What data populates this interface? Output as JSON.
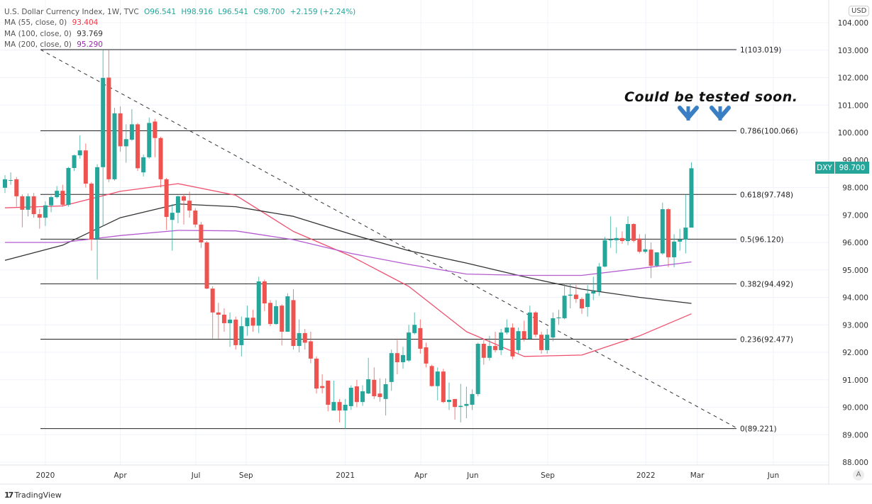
{
  "legend": {
    "title": "U.S. Dollar Currency Index, 1W, TVC",
    "open": "O96.541",
    "high": "H98.916",
    "low": "L96.541",
    "close": "C98.700",
    "change": "+2.159 (+2.24%)",
    "ma55_label": "MA (55, close, 0)",
    "ma55_value": "93.404",
    "ma100_label": "MA (100, close, 0)",
    "ma100_value": "93.769",
    "ma200_label": "MA (200, close, 0)",
    "ma200_value": "95.290"
  },
  "currency_button": "USD",
  "auto_scale_button": "A",
  "brand": "TradingView",
  "annotation": "Could be tested soon.",
  "price_badge": {
    "symbol": "DXY",
    "price": "98.700"
  },
  "colors": {
    "up": "#26a69a",
    "down": "#ef5350",
    "ma55": "#f0506e",
    "ma100": "#333333",
    "ma200": "#b45bd0",
    "arrow": "#3a7fc4"
  },
  "chart_data": {
    "type": "candlestick",
    "title": "U.S. Dollar Currency Index, 1W, TVC",
    "interval": "1W",
    "ylim": [
      88,
      104
    ],
    "y_ticks": [
      "104.000",
      "103.000",
      "102.000",
      "101.000",
      "100.000",
      "99.000",
      "98.000",
      "97.000",
      "96.000",
      "95.000",
      "94.000",
      "93.000",
      "92.000",
      "91.000",
      "90.000",
      "89.000",
      "88.000"
    ],
    "x_ticks": [
      "2020",
      "Apr",
      "Jul",
      "Sep",
      "2021",
      "Apr",
      "Jun",
      "Sep",
      "2022",
      "Mar",
      "Jun"
    ],
    "grid": true,
    "ohlc": [
      [
        97.99,
        98.45,
        97.8,
        98.3
      ],
      [
        98.25,
        98.55,
        98.1,
        98.27
      ],
      [
        98.3,
        98.38,
        97.3,
        97.68
      ],
      [
        97.68,
        97.75,
        96.55,
        97.19
      ],
      [
        97.19,
        97.78,
        96.95,
        97.68
      ],
      [
        97.68,
        97.8,
        96.9,
        97.03
      ],
      [
        97.03,
        97.22,
        96.5,
        96.9
      ],
      [
        96.9,
        97.5,
        96.6,
        97.35
      ],
      [
        97.35,
        97.7,
        97.1,
        97.65
      ],
      [
        97.65,
        98.05,
        97.6,
        97.88
      ],
      [
        97.88,
        98.1,
        97.3,
        97.37
      ],
      [
        97.37,
        98.75,
        97.3,
        98.71
      ],
      [
        98.71,
        99.2,
        98.6,
        99.17
      ],
      [
        99.17,
        99.9,
        99.05,
        99.35
      ],
      [
        99.35,
        99.6,
        98.0,
        98.14
      ],
      [
        98.14,
        98.2,
        95.7,
        96.1
      ],
      [
        96.12,
        98.85,
        94.65,
        98.74
      ],
      [
        98.74,
        103.02,
        96.6,
        101.99
      ],
      [
        102.0,
        103.02,
        98.2,
        98.3
      ],
      [
        98.3,
        100.9,
        98.25,
        100.7
      ],
      [
        100.7,
        100.95,
        99.3,
        99.5
      ],
      [
        99.5,
        100.3,
        98.9,
        99.76
      ],
      [
        99.74,
        100.85,
        99.7,
        100.3
      ],
      [
        100.3,
        100.35,
        98.6,
        98.7
      ],
      [
        98.55,
        99.2,
        98.4,
        99.1
      ],
      [
        99.1,
        100.55,
        99.05,
        100.35
      ],
      [
        100.4,
        100.5,
        99.1,
        99.8
      ],
      [
        99.8,
        99.85,
        98.0,
        98.3
      ],
      [
        98.3,
        98.35,
        96.45,
        96.93
      ],
      [
        96.82,
        97.4,
        95.7,
        97.08
      ],
      [
        97.08,
        97.7,
        96.7,
        97.68
      ],
      [
        97.68,
        97.75,
        96.65,
        97.52
      ],
      [
        97.52,
        97.85,
        96.9,
        97.16
      ],
      [
        97.16,
        97.25,
        96.55,
        96.65
      ],
      [
        96.65,
        96.75,
        95.8,
        96.0
      ],
      [
        96.0,
        96.05,
        94.3,
        94.32
      ],
      [
        94.32,
        94.4,
        92.5,
        93.45
      ],
      [
        93.45,
        93.8,
        92.5,
        93.37
      ],
      [
        93.37,
        93.6,
        92.75,
        93.06
      ],
      [
        93.06,
        93.45,
        92.2,
        93.19
      ],
      [
        93.19,
        93.3,
        92.1,
        92.26
      ],
      [
        92.26,
        93.3,
        91.85,
        92.95
      ],
      [
        92.95,
        93.7,
        92.6,
        93.26
      ],
      [
        93.26,
        93.55,
        92.75,
        92.97
      ],
      [
        92.97,
        94.75,
        92.7,
        94.58
      ],
      [
        94.58,
        94.65,
        93.5,
        93.78
      ],
      [
        93.8,
        93.9,
        92.95,
        93.03
      ],
      [
        93.03,
        93.9,
        93.0,
        93.68
      ],
      [
        93.7,
        93.75,
        92.25,
        92.75
      ],
      [
        92.75,
        94.15,
        92.75,
        94.04
      ],
      [
        93.9,
        94.3,
        92.1,
        92.23
      ],
      [
        92.23,
        93.2,
        92.0,
        92.7
      ],
      [
        92.7,
        92.85,
        92.1,
        92.35
      ],
      [
        92.4,
        92.75,
        91.6,
        91.77
      ],
      [
        91.77,
        91.85,
        90.5,
        90.68
      ],
      [
        90.77,
        91.2,
        90.5,
        90.7
      ],
      [
        90.97,
        90.97,
        89.85,
        90.09
      ],
      [
        89.88,
        90.97,
        89.88,
        90.19
      ],
      [
        90.19,
        90.3,
        89.45,
        89.88
      ],
      [
        89.88,
        90.3,
        89.21,
        90.09
      ],
      [
        90.04,
        90.8,
        89.9,
        90.71
      ],
      [
        90.76,
        91.0,
        90.0,
        90.19
      ],
      [
        90.19,
        90.8,
        90.05,
        90.58
      ],
      [
        90.5,
        91.8,
        90.48,
        91.02
      ],
      [
        91.0,
        91.45,
        90.3,
        90.4
      ],
      [
        90.5,
        91.05,
        90.2,
        90.37
      ],
      [
        90.3,
        91.05,
        89.7,
        90.84
      ],
      [
        90.92,
        92.1,
        90.6,
        91.97
      ],
      [
        91.97,
        92.5,
        91.2,
        91.64
      ],
      [
        91.64,
        92.2,
        91.4,
        91.9
      ],
      [
        91.7,
        93.0,
        91.65,
        92.72
      ],
      [
        92.7,
        93.45,
        92.65,
        93.0
      ],
      [
        92.88,
        93.2,
        91.95,
        92.13
      ],
      [
        92.18,
        92.35,
        91.45,
        91.59
      ],
      [
        91.5,
        91.55,
        90.75,
        90.77
      ],
      [
        90.77,
        91.45,
        90.25,
        91.3
      ],
      [
        91.3,
        91.4,
        90.15,
        90.19
      ],
      [
        90.19,
        90.9,
        89.9,
        90.27
      ],
      [
        90.3,
        90.3,
        89.55,
        90.01
      ],
      [
        90.01,
        90.85,
        89.45,
        90.05
      ],
      [
        90.05,
        90.75,
        89.6,
        90.12
      ],
      [
        90.09,
        90.65,
        89.9,
        90.48
      ],
      [
        90.48,
        92.35,
        90.4,
        92.31
      ],
      [
        92.31,
        92.45,
        91.55,
        91.8
      ],
      [
        91.8,
        92.6,
        91.7,
        92.23
      ],
      [
        92.23,
        92.75,
        92.0,
        92.08
      ],
      [
        92.08,
        92.85,
        91.9,
        92.72
      ],
      [
        92.72,
        93.2,
        92.65,
        92.9
      ],
      [
        92.9,
        93.05,
        91.75,
        91.85
      ],
      [
        92.08,
        92.9,
        91.95,
        92.77
      ],
      [
        92.77,
        93.15,
        92.4,
        92.49
      ],
      [
        92.49,
        93.7,
        92.45,
        93.45
      ],
      [
        93.45,
        93.5,
        92.55,
        92.64
      ],
      [
        92.64,
        92.75,
        91.95,
        92.08
      ],
      [
        92.08,
        92.85,
        91.95,
        92.64
      ],
      [
        92.54,
        93.45,
        92.4,
        93.24
      ],
      [
        93.24,
        93.55,
        93.0,
        93.27
      ],
      [
        93.24,
        94.5,
        93.2,
        94.06
      ],
      [
        94.06,
        94.5,
        93.6,
        94.1
      ],
      [
        94.1,
        94.45,
        93.8,
        93.94
      ],
      [
        93.94,
        94.0,
        93.4,
        93.6
      ],
      [
        93.65,
        94.45,
        93.3,
        94.14
      ],
      [
        94.14,
        94.75,
        93.9,
        94.22
      ],
      [
        94.22,
        95.25,
        94.05,
        95.12
      ],
      [
        95.12,
        96.2,
        95.1,
        96.08
      ],
      [
        96.08,
        96.95,
        95.8,
        96.1
      ],
      [
        96.08,
        96.55,
        95.6,
        96.16
      ],
      [
        96.16,
        96.4,
        95.95,
        96.05
      ],
      [
        96.05,
        96.95,
        95.9,
        96.67
      ],
      [
        96.67,
        96.7,
        96.0,
        96.06
      ],
      [
        96.14,
        96.3,
        95.6,
        95.66
      ],
      [
        95.66,
        96.3,
        95.6,
        95.75
      ],
      [
        95.74,
        96.0,
        94.7,
        95.15
      ],
      [
        95.15,
        95.55,
        95.1,
        95.64
      ],
      [
        95.6,
        97.45,
        95.55,
        97.21
      ],
      [
        97.21,
        97.25,
        95.1,
        95.46
      ],
      [
        95.46,
        96.3,
        95.1,
        96.03
      ],
      [
        96.03,
        96.5,
        95.7,
        96.1
      ],
      [
        96.1,
        97.75,
        95.6,
        96.54
      ],
      [
        96.54,
        98.92,
        96.54,
        98.7
      ]
    ],
    "series": [
      {
        "name": "MA (55, close, 0)",
        "values": [
          97.26,
          97.33,
          97.86,
          98.14,
          97.72,
          96.4,
          95.5,
          94.4,
          92.75,
          91.85,
          91.9,
          92.6,
          93.4
        ]
      },
      {
        "name": "MA (100, close, 0)",
        "values": [
          95.35,
          95.9,
          96.9,
          97.4,
          97.3,
          96.95,
          96.3,
          95.7,
          95.25,
          94.75,
          94.3,
          94.0,
          93.78
        ]
      },
      {
        "name": "MA (200, close, 0)",
        "values": [
          96.0,
          96.0,
          96.25,
          96.44,
          96.42,
          96.1,
          95.6,
          95.2,
          94.85,
          94.8,
          94.8,
          95.05,
          95.29
        ]
      }
    ],
    "fib_levels": [
      {
        "level": 103.019,
        "label": "1(103.019)"
      },
      {
        "level": 100.066,
        "label": "0.786(100.066)"
      },
      {
        "level": 97.748,
        "label": "0.618(97.748)"
      },
      {
        "level": 96.12,
        "label": "0.5(96.120)"
      },
      {
        "level": 94.492,
        "label": "0.382(94.492)"
      },
      {
        "level": 92.477,
        "label": "0.236(92.477)"
      },
      {
        "level": 89.221,
        "label": "0(89.221)"
      }
    ],
    "trendline": {
      "style": "dashed",
      "from_price": 103.02,
      "to_price": 89.22
    }
  }
}
